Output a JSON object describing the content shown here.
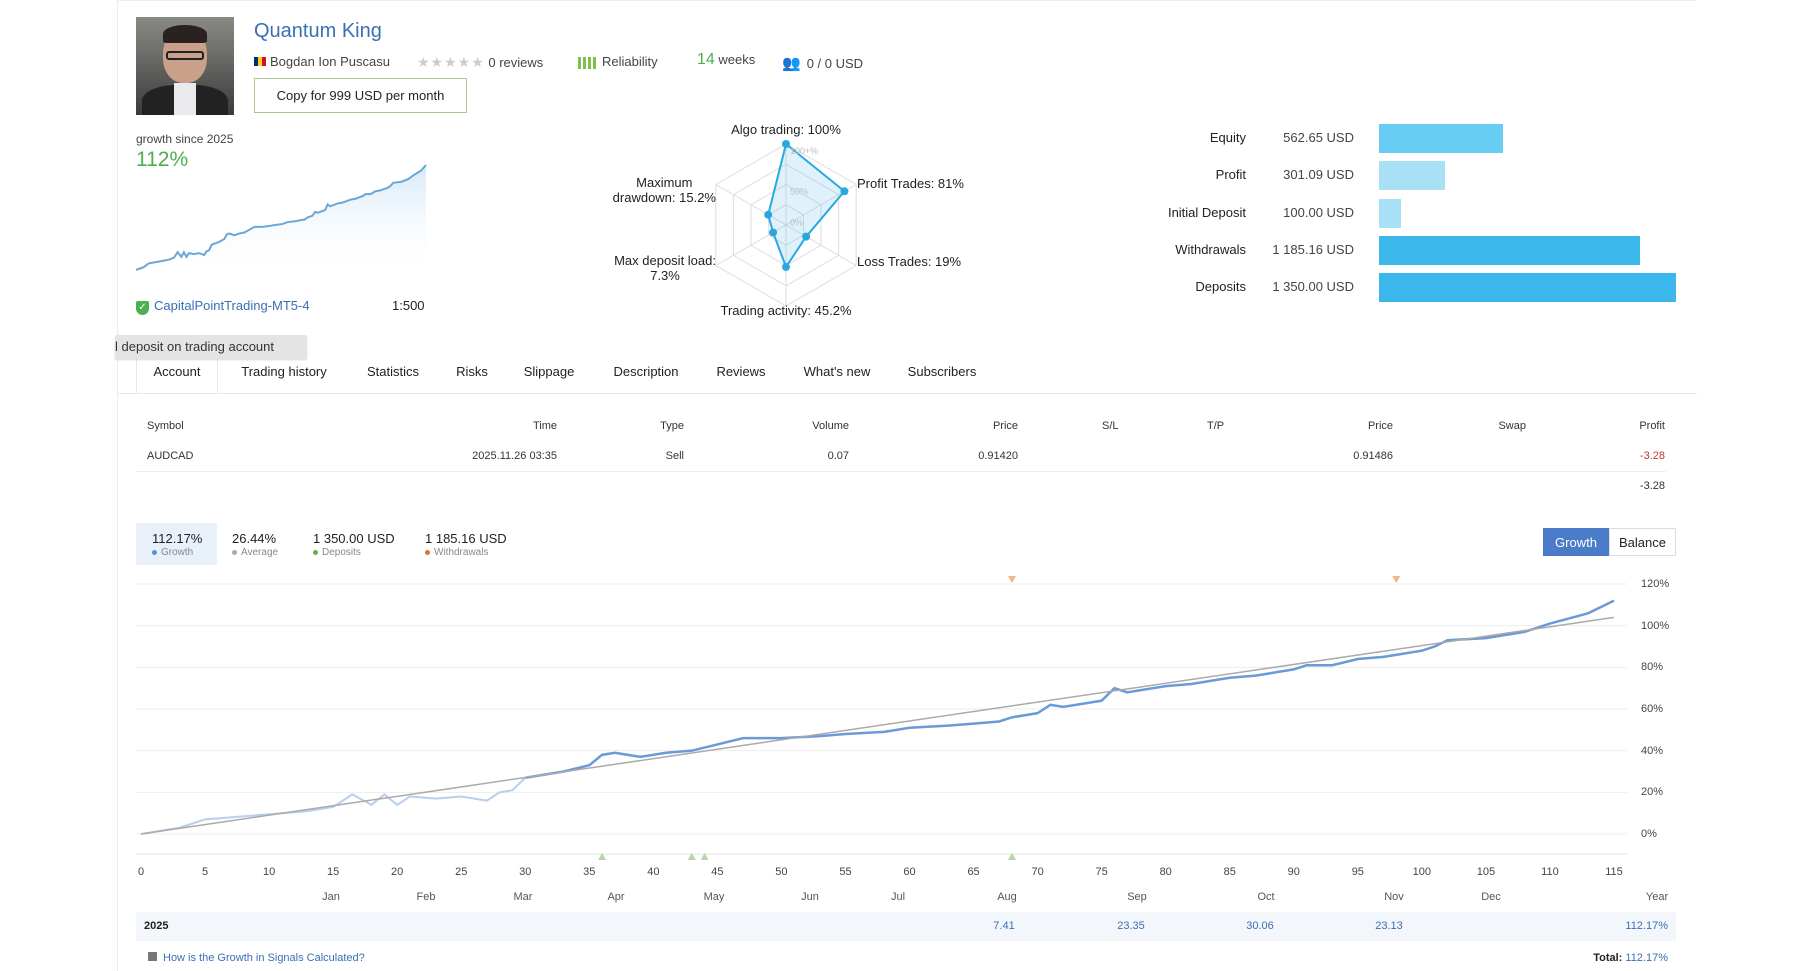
{
  "header": {
    "title": "Quantum King",
    "author": "Bogdan Ion Puscasu",
    "reviews": "0 reviews",
    "stars": 0,
    "reliability": "Reliability",
    "weeks_value": "14",
    "weeks_label": "weeks",
    "subscribers": "0 / 0 USD",
    "copy_button": "Copy for 999 USD per month"
  },
  "growth": {
    "label": "growth since 2025",
    "value": "112%",
    "broker": "CapitalPointTrading-MT5-4",
    "leverage": "1:500"
  },
  "radar": {
    "labels": {
      "algo": "Algo trading: 100%",
      "profit": "Profit Trades: 81%",
      "loss": "Loss Trades: 19%",
      "activity": "Trading activity: 45.2%",
      "load1": "Max deposit load:",
      "load2": "7.3%",
      "dd1": "Maximum",
      "dd2": "drawdown: 15.2%"
    },
    "ring_labels": [
      "100+%",
      "50%",
      "0%"
    ],
    "values": [
      100,
      81,
      19,
      45.2,
      7.3,
      15.2
    ]
  },
  "balance_bars": [
    {
      "label": "Equity",
      "value": "562.65 USD",
      "amount": 562.65,
      "color": "#67cdf2"
    },
    {
      "label": "Profit",
      "value": "301.09 USD",
      "amount": 301.09,
      "color": "#a8e0f6"
    },
    {
      "label": "Initial Deposit",
      "value": "100.00 USD",
      "amount": 100.0,
      "color": "#a8e0f6"
    },
    {
      "label": "Withdrawals",
      "value": "1 185.16 USD",
      "amount": 1185.16,
      "color": "#3cb7ec"
    },
    {
      "label": "Deposits",
      "value": "1 350.00 USD",
      "amount": 1350.0,
      "color": "#3cb7ec"
    }
  ],
  "tooltip": "l deposit on trading account",
  "tabs": [
    "Account",
    "Trading history",
    "Statistics",
    "Risks",
    "Slippage",
    "Description",
    "Reviews",
    "What's new",
    "Subscribers"
  ],
  "table": {
    "headers": [
      "Symbol",
      "Time",
      "Type",
      "Volume",
      "Price",
      "S/L",
      "T/P",
      "Price",
      "Swap",
      "Profit"
    ],
    "row": [
      "AUDCAD",
      "2025.11.26 03:35",
      "Sell",
      "0.07",
      "0.91420",
      "",
      "",
      "0.91486",
      "",
      "-3.28"
    ],
    "total": "-3.28"
  },
  "summary": [
    {
      "value": "112.17%",
      "label": "Growth",
      "color": "#5b8fd4"
    },
    {
      "value": "26.44%",
      "label": "Average",
      "color": "#aaaaaa"
    },
    {
      "value": "1 350.00 USD",
      "label": "Deposits",
      "color": "#6ab04c"
    },
    {
      "value": "1 185.16 USD",
      "label": "Withdrawals",
      "color": "#e0703c"
    }
  ],
  "toggle": {
    "growth": "Growth",
    "balance": "Balance",
    "active": "Growth"
  },
  "chart_data": {
    "type": "line",
    "x_ticks": [
      0,
      5,
      10,
      15,
      20,
      25,
      30,
      35,
      40,
      45,
      50,
      55,
      60,
      65,
      70,
      75,
      80,
      85,
      90,
      95,
      100,
      105,
      110,
      115
    ],
    "y_ticks": [
      "0%",
      "20%",
      "40%",
      "60%",
      "80%",
      "100%",
      "120%"
    ],
    "xlim": [
      0,
      115
    ],
    "ylim": [
      0,
      120
    ],
    "grid": true,
    "months": [
      "Jan",
      "Feb",
      "Mar",
      "Apr",
      "May",
      "Jun",
      "Jul",
      "Aug",
      "Sep",
      "Oct",
      "Nov",
      "Dec",
      "Year"
    ],
    "series": [
      {
        "x": [
          0,
          3,
          5,
          7,
          10,
          13,
          15,
          16.5,
          18,
          19,
          20,
          21,
          23,
          25,
          27,
          28,
          29,
          30,
          33,
          35,
          36,
          37,
          39,
          41,
          43,
          45,
          47,
          50,
          53,
          55,
          58,
          60,
          63,
          65,
          67,
          68,
          70,
          71,
          72,
          74,
          75,
          76,
          77,
          78,
          80,
          82,
          85,
          87,
          88,
          90,
          91,
          93,
          95,
          97,
          100,
          101,
          102,
          105,
          108,
          110,
          113,
          115
        ],
        "y": [
          0,
          3,
          7,
          8,
          9.5,
          11,
          13,
          19,
          14,
          19,
          14,
          18,
          17,
          18,
          16,
          20,
          21,
          27,
          30,
          33,
          38,
          39,
          37,
          39,
          40,
          43,
          46,
          46,
          47,
          48,
          49,
          51,
          52,
          53,
          54,
          56,
          58,
          62,
          61,
          63,
          64,
          70,
          68,
          69,
          71,
          72,
          75,
          76,
          77,
          79,
          81,
          81,
          84,
          85,
          88,
          90,
          93,
          94,
          97,
          101,
          106,
          112
        ]
      }
    ],
    "trend": {
      "x": [
        0,
        115
      ],
      "y": [
        0,
        104
      ]
    },
    "deposit_markers_x": [
      36,
      43,
      44,
      68
    ],
    "withdrawal_markers_x": [
      68,
      98
    ]
  },
  "year_row": {
    "year": "2025",
    "values": [
      {
        "month": "Aug",
        "value": "7.41"
      },
      {
        "month": "Sep",
        "value": "23.35"
      },
      {
        "month": "Oct",
        "value": "30.06"
      },
      {
        "month": "Nov",
        "value": "23.13"
      }
    ],
    "total": "112.17%"
  },
  "footer": {
    "link": "How is the Growth in Signals Calculated?",
    "total_label": "Total:",
    "total_value": "112.17%"
  }
}
